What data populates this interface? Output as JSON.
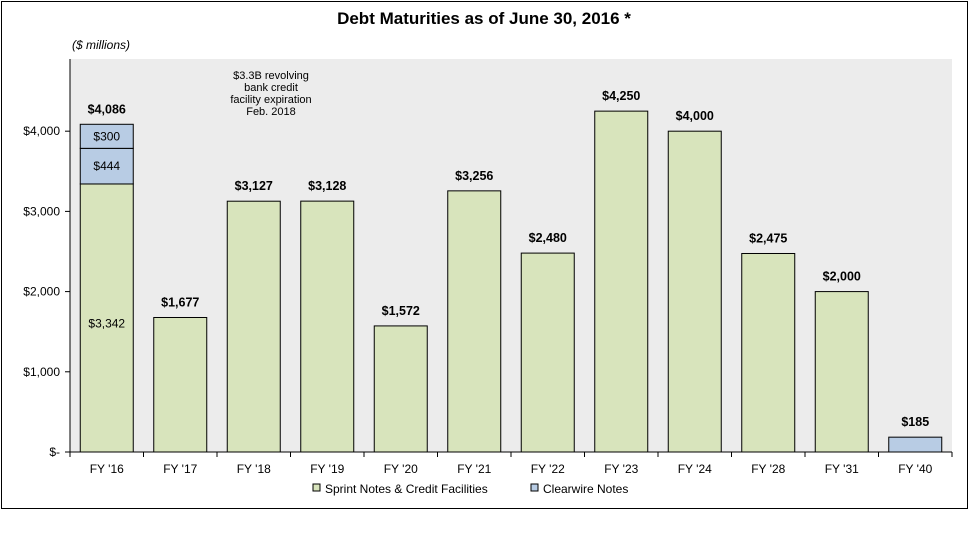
{
  "chart_data": {
    "type": "bar",
    "stacked": true,
    "title": "Debt Maturities as of June 30, 2016 *",
    "unit_label": "($ millions)",
    "categories": [
      "FY '16",
      "FY '17",
      "FY '18",
      "FY '19",
      "FY '20",
      "FY '21",
      "FY '22",
      "FY '23",
      "FY '24",
      "FY '28",
      "FY '31",
      "FY '40"
    ],
    "series": [
      {
        "name": "Sprint Notes & Credit Facilities",
        "color": "#d8e4bc",
        "values": [
          3342,
          1677,
          3127,
          3128,
          1572,
          3256,
          2480,
          4250,
          4000,
          2475,
          2000,
          0
        ]
      },
      {
        "name": "Clearwire Notes",
        "color": "#b8cce4",
        "values": [
          744,
          0,
          0,
          0,
          0,
          0,
          0,
          0,
          0,
          0,
          0,
          185
        ]
      }
    ],
    "stack_segments_first_bar": [
      {
        "value": 3342,
        "label": "$3,342",
        "color": "#d8e4bc"
      },
      {
        "value": 444,
        "label": "$444",
        "color": "#b8cce4"
      },
      {
        "value": 300,
        "label": "$300",
        "color": "#b8cce4"
      }
    ],
    "totals": [
      "$4,086",
      "$1,677",
      "$3,127",
      "$3,128",
      "$1,572",
      "$3,256",
      "$2,480",
      "$4,250",
      "$4,000",
      "$2,475",
      "$2,000",
      "$185"
    ],
    "yticks": [
      0,
      1000,
      2000,
      3000,
      4000
    ],
    "ytick_labels": [
      "$-",
      "$1,000",
      "$2,000",
      "$3,000",
      "$4,000"
    ],
    "ylim": [
      0,
      4900
    ],
    "annotation": [
      "$3.3B revolving",
      "bank credit",
      "facility expiration",
      "Feb. 2018"
    ],
    "legend_position": "bottom",
    "plot_background": "#ececec",
    "grid": false
  }
}
